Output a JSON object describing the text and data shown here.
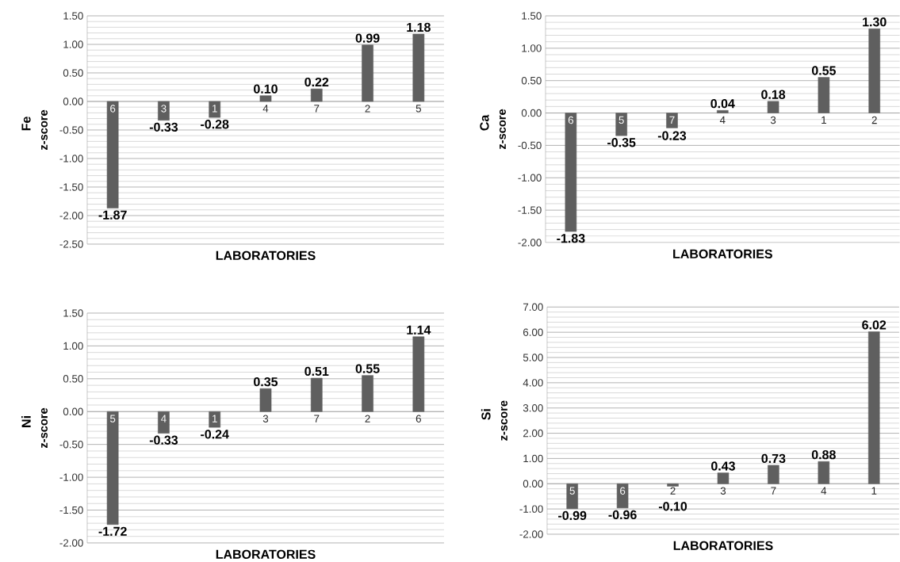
{
  "chart_data": [
    {
      "type": "bar",
      "title": "Fe",
      "ylabel": "z-score",
      "xlabel": "LABORATORIES",
      "categories": [
        "6",
        "3",
        "1",
        "4",
        "7",
        "2",
        "5"
      ],
      "values": [
        -1.87,
        -0.33,
        -0.28,
        0.1,
        0.22,
        0.99,
        1.18
      ],
      "value_labels": [
        "-1.87",
        "-0.33",
        "-0.28",
        "0.10",
        "0.22",
        "0.99",
        "1.18"
      ],
      "color": "#5f5f5f",
      "ylim": [
        -2.5,
        1.5
      ],
      "yticks": [
        {
          "value": -2.5,
          "label": "-2.50"
        },
        {
          "value": -2,
          "label": "-2.00"
        },
        {
          "value": -1.5,
          "label": "-1.50"
        },
        {
          "value": -1,
          "label": "-1.00"
        },
        {
          "value": -0.5,
          "label": "-0.50"
        },
        {
          "value": 0,
          "label": "0.00"
        },
        {
          "value": 0.5,
          "label": "0.50"
        },
        {
          "value": 1,
          "label": "1.00"
        },
        {
          "value": 1.5,
          "label": "1.50"
        }
      ],
      "grid": "y"
    },
    {
      "type": "bar",
      "title": "Ca",
      "ylabel": "z-score",
      "xlabel": "LABORATORIES",
      "categories": [
        "6",
        "5",
        "7",
        "4",
        "3",
        "1",
        "2"
      ],
      "values": [
        -1.83,
        -0.35,
        -0.23,
        0.04,
        0.18,
        0.55,
        1.3
      ],
      "value_labels": [
        "-1.83",
        "-0.35",
        "-0.23",
        "0.04",
        "0.18",
        "0.55",
        "1.30"
      ],
      "color": "#5f5f5f",
      "ylim": [
        -2,
        1.5
      ],
      "yticks": [
        {
          "value": -2,
          "label": "-2.00"
        },
        {
          "value": -1.5,
          "label": "-1.50"
        },
        {
          "value": -1,
          "label": "-1.00"
        },
        {
          "value": -0.5,
          "label": "-0.50"
        },
        {
          "value": 0,
          "label": "0.00"
        },
        {
          "value": 0.5,
          "label": "0.50"
        },
        {
          "value": 1,
          "label": "1.00"
        },
        {
          "value": 1.5,
          "label": "1.50"
        }
      ],
      "grid": "y"
    },
    {
      "type": "bar",
      "title": "Ni",
      "ylabel": "z-score",
      "xlabel": "LABORATORIES",
      "categories": [
        "5",
        "4",
        "1",
        "3",
        "7",
        "2",
        "6"
      ],
      "values": [
        -1.72,
        -0.33,
        -0.24,
        0.35,
        0.51,
        0.55,
        1.14
      ],
      "value_labels": [
        "-1.72",
        "-0.33",
        "-0.24",
        "0.35",
        "0.51",
        "0.55",
        "1.14"
      ],
      "color": "#5f5f5f",
      "ylim": [
        -2,
        1.5
      ],
      "yticks": [
        {
          "value": -2,
          "label": "-2.00"
        },
        {
          "value": -1.5,
          "label": "-1.50"
        },
        {
          "value": -1,
          "label": "-1.00"
        },
        {
          "value": -0.5,
          "label": "-0.50"
        },
        {
          "value": 0,
          "label": "0.00"
        },
        {
          "value": 0.5,
          "label": "0.50"
        },
        {
          "value": 1,
          "label": "1.00"
        },
        {
          "value": 1.5,
          "label": "1.50"
        }
      ],
      "grid": "y"
    },
    {
      "type": "bar",
      "title": "Si",
      "ylabel": "z-score",
      "xlabel": "LABORATORIES",
      "categories": [
        "5",
        "6",
        "2",
        "3",
        "7",
        "4",
        "1"
      ],
      "values": [
        -0.99,
        -0.96,
        -0.1,
        0.43,
        0.73,
        0.88,
        6.02
      ],
      "value_labels": [
        "-0.99",
        "-0.96",
        "-0.10",
        "0.43",
        "0.73",
        "0.88",
        "6.02"
      ],
      "color": "#5f5f5f",
      "ylim": [
        -2,
        7
      ],
      "yticks": [
        {
          "value": -2,
          "label": "-2.00"
        },
        {
          "value": -1,
          "label": "-1.00"
        },
        {
          "value": 0,
          "label": "0.00"
        },
        {
          "value": 1,
          "label": "1.00"
        },
        {
          "value": 2,
          "label": "2.00"
        },
        {
          "value": 3,
          "label": "3.00"
        },
        {
          "value": 4,
          "label": "4.00"
        },
        {
          "value": 5,
          "label": "5.00"
        },
        {
          "value": 6,
          "label": "6.00"
        },
        {
          "value": 7,
          "label": "7.00"
        }
      ],
      "grid": "y"
    }
  ]
}
